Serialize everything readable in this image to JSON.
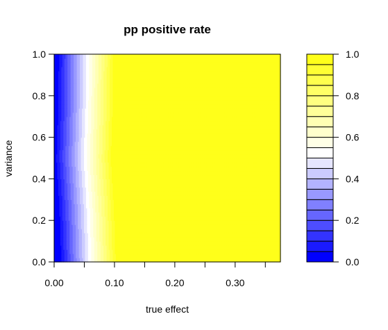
{
  "chart_data": {
    "type": "heatmap",
    "title": "pp positive rate",
    "xlabel": "true effect",
    "ylabel": "variance",
    "xlim": [
      0.0,
      0.375
    ],
    "ylim": [
      0.0,
      1.0
    ],
    "x_ticks": [
      0.0,
      0.05,
      0.1,
      0.15,
      0.2,
      0.25,
      0.3,
      0.35
    ],
    "x_tick_labels": [
      "0.00",
      "0.10",
      "0.20",
      "0.30"
    ],
    "x_tick_label_values": [
      0.0,
      0.1,
      0.2,
      0.3
    ],
    "y_ticks": [
      0.0,
      0.2,
      0.4,
      0.6,
      0.8,
      1.0
    ],
    "y_tick_labels": [
      "0.0",
      "0.2",
      "0.4",
      "0.6",
      "0.8",
      "1.0"
    ],
    "colorbar": {
      "levels": [
        0.0,
        0.05,
        0.1,
        0.15,
        0.2,
        0.25,
        0.3,
        0.35,
        0.4,
        0.45,
        0.5,
        0.55,
        0.6,
        0.65,
        0.7,
        0.75,
        0.8,
        0.85,
        0.9,
        0.95,
        1.0
      ],
      "tick_values": [
        0.0,
        0.2,
        0.4,
        0.6,
        0.8,
        1.0
      ],
      "tick_labels": [
        "0.0",
        "0.2",
        "0.4",
        "0.6",
        "0.8",
        "1.0"
      ],
      "colors": [
        "#0000ff",
        "#1a1aff",
        "#3333ff",
        "#4d4dff",
        "#6666ff",
        "#8080ff",
        "#9999ff",
        "#b3b3ff",
        "#ccccff",
        "#e6e6ff",
        "#ffffff",
        "#ffffe6",
        "#ffffcc",
        "#ffffb3",
        "#ffff99",
        "#ffff80",
        "#ffff66",
        "#ffff4d",
        "#ffff33",
        "#ffff1a"
      ]
    },
    "contour_transition": {
      "description_values": "rate rises from 0.0 at true effect 0.00 to 1.0 near true effect 0.10; boundary slightly shifts with variance",
      "variance": [
        0.0,
        0.25,
        0.5,
        0.75,
        1.0
      ],
      "effect_at_rate_0_5": [
        0.057,
        0.054,
        0.049,
        0.052,
        0.053
      ]
    }
  }
}
